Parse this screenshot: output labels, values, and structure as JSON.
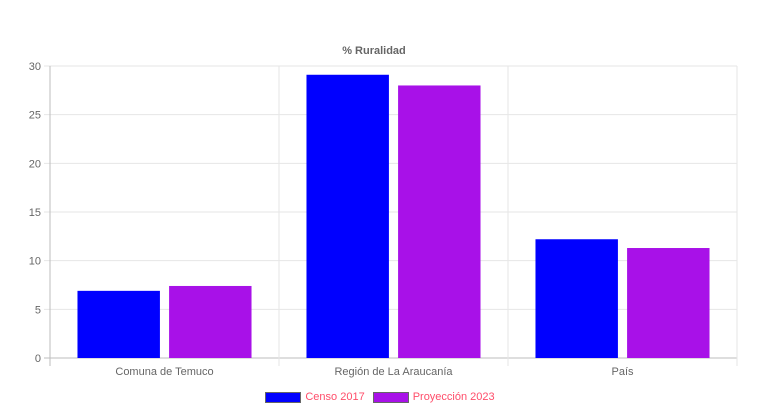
{
  "chart_data": {
    "type": "bar",
    "title": "% Ruralidad",
    "categories": [
      "Comuna de Temuco",
      "Región de La Araucanía",
      "País"
    ],
    "series": [
      {
        "name": "Censo 2017",
        "values": [
          6.9,
          29.1,
          12.2
        ],
        "color": "#0000ff"
      },
      {
        "name": "Proyección 2023",
        "values": [
          7.4,
          28.0,
          11.3
        ],
        "color": "#a811e8"
      }
    ],
    "ylim": [
      0,
      30
    ],
    "yticks": [
      0,
      5,
      10,
      15,
      20,
      25,
      30
    ],
    "grid": true,
    "legend_position": "bottom",
    "legend_text_color": "#ff4d6a"
  }
}
